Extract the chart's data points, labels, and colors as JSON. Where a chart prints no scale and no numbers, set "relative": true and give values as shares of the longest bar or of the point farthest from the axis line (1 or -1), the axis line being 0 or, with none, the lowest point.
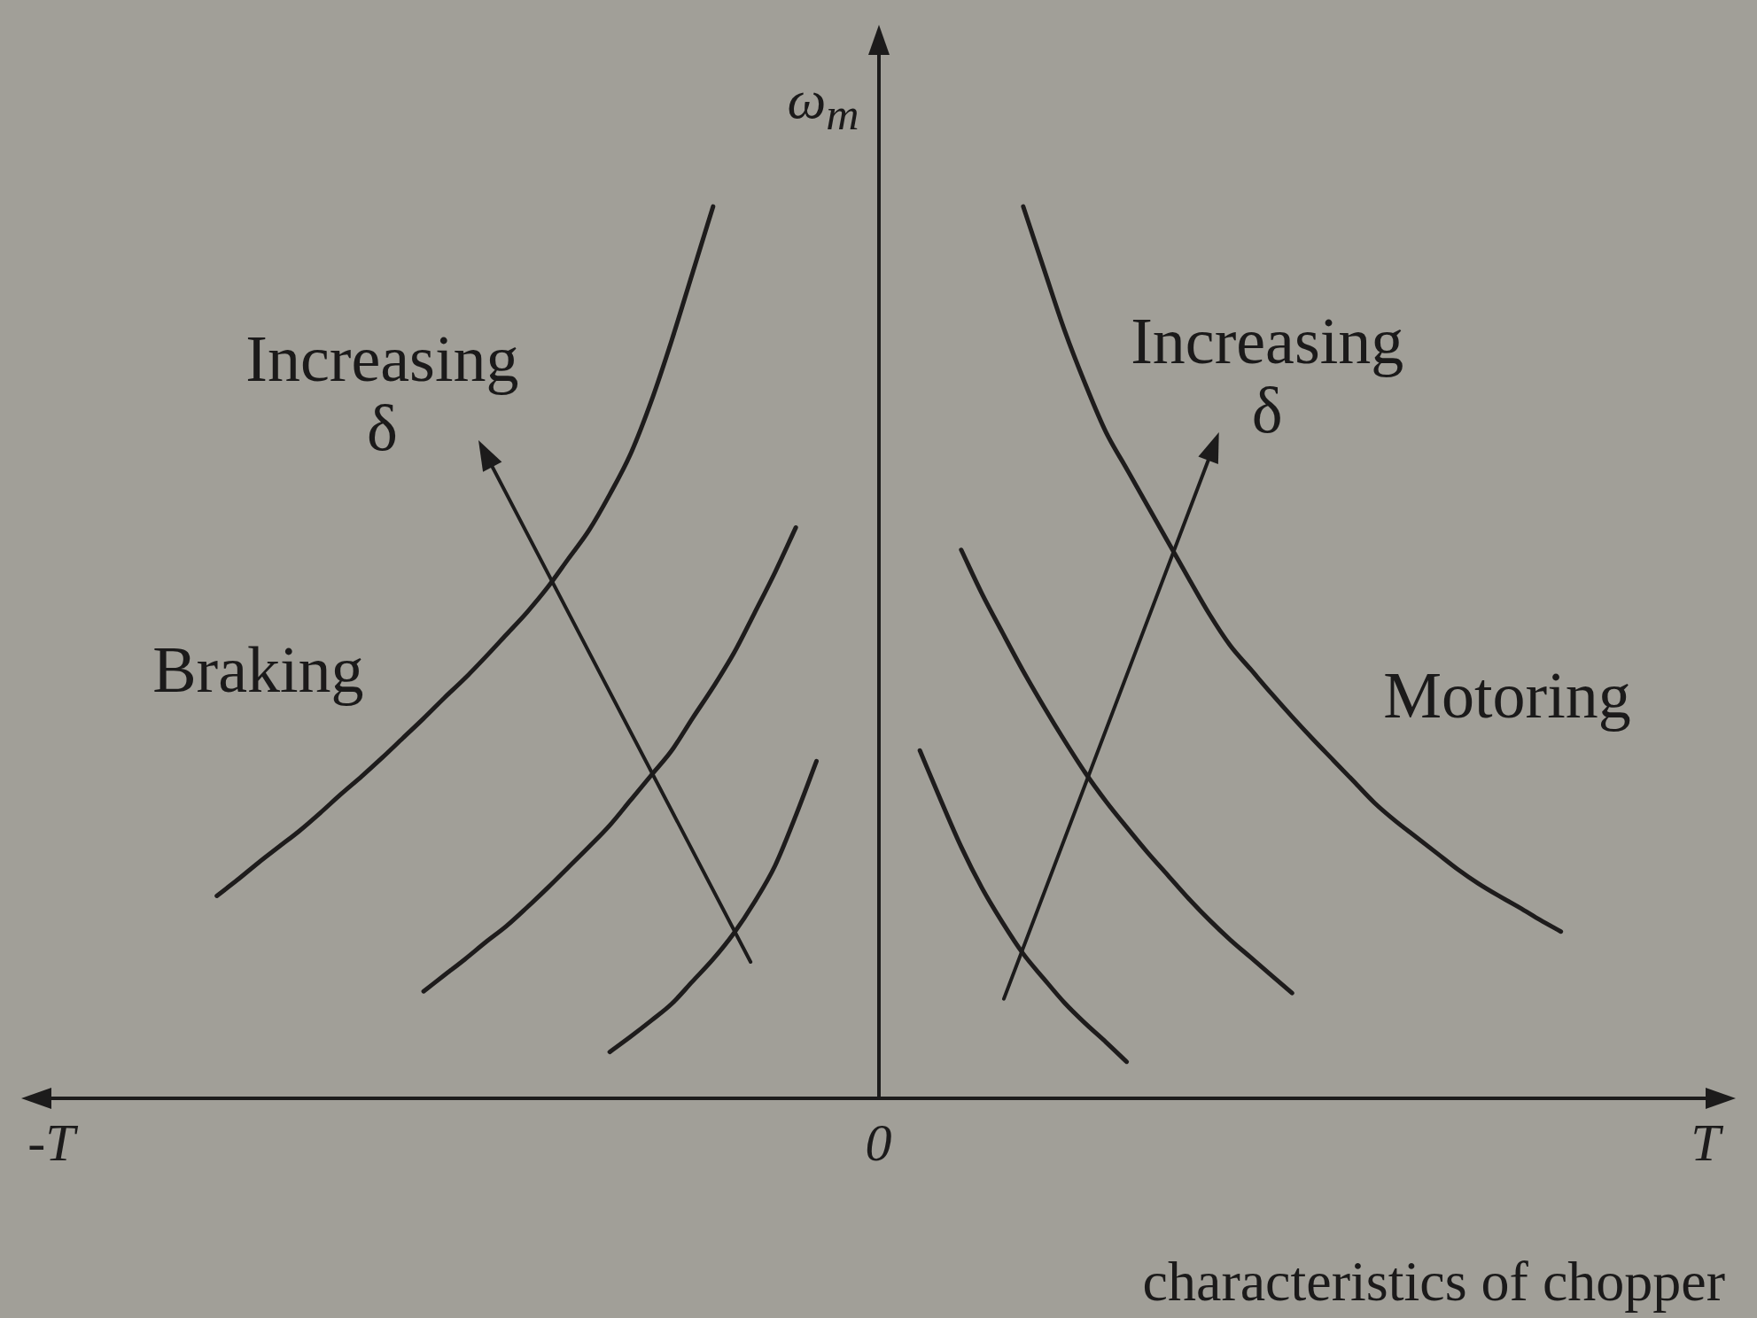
{
  "chart_data": {
    "type": "line",
    "ylabel": "ω$_{m}$",
    "relative": true,
    "categories": [
      "-T",
      null,
      null,
      null,
      null,
      null,
      null,
      null,
      null,
      null,
      null,
      null,
      null,
      null,
      null,
      null,
      null,
      null,
      null,
      null,
      null,
      null,
      null,
      null,
      null,
      null,
      null,
      null,
      null,
      null,
      null,
      null,
      null,
      null,
      null,
      null,
      null,
      null,
      null,
      null,
      "0",
      null,
      null,
      null,
      null,
      null,
      null,
      null,
      null,
      null,
      null,
      null,
      null,
      null,
      null,
      null,
      null,
      null,
      null,
      null,
      null,
      null,
      null,
      null,
      null,
      null,
      null,
      null,
      null,
      null,
      null,
      null,
      null,
      null,
      null,
      null,
      null,
      null,
      null,
      null,
      "T"
    ],
    "series": [
      {
        "color": "#1e1c1c",
        "values": [
          null,
          null,
          null,
          null,
          null,
          null,
          null,
          null,
          0.227,
          0.245,
          0.264,
          0.282,
          0.3,
          0.32,
          0.341,
          0.361,
          0.382,
          0.404,
          0.426,
          0.449,
          0.471,
          0.495,
          0.52,
          0.545,
          0.573,
          0.605,
          0.637,
          0.677,
          0.722,
          0.781,
          0.85,
          0.925,
          1.0,
          null,
          null,
          null,
          null,
          null,
          null,
          null,
          null,
          null,
          null,
          null,
          null,
          null,
          null,
          null,
          null,
          null,
          null,
          null,
          null,
          null,
          null,
          null,
          null,
          null,
          null,
          null,
          null,
          null,
          null,
          null,
          null,
          null,
          null,
          null,
          null,
          null,
          null,
          null,
          null,
          null,
          null,
          null,
          null,
          null,
          null,
          null,
          null
        ]
      },
      {
        "color": "#1e1c1c",
        "values": [
          null,
          null,
          null,
          null,
          null,
          null,
          null,
          null,
          null,
          null,
          null,
          null,
          null,
          null,
          null,
          null,
          null,
          null,
          0.12,
          0.138,
          0.156,
          0.175,
          0.193,
          0.214,
          0.236,
          0.259,
          0.282,
          0.306,
          0.334,
          0.362,
          0.39,
          0.426,
          0.461,
          0.499,
          0.544,
          0.59,
          0.64,
          null,
          null,
          null,
          null,
          null,
          null,
          null,
          null,
          null,
          null,
          null,
          null,
          null,
          null,
          null,
          null,
          null,
          null,
          null,
          null,
          null,
          null,
          null,
          null,
          null,
          null,
          null,
          null,
          null,
          null,
          null,
          null,
          null,
          null,
          null,
          null,
          null,
          null,
          null,
          null,
          null,
          null,
          null,
          null
        ]
      },
      {
        "color": "#1e1c1c",
        "values": [
          null,
          null,
          null,
          null,
          null,
          null,
          null,
          null,
          null,
          null,
          null,
          null,
          null,
          null,
          null,
          null,
          null,
          null,
          null,
          null,
          null,
          null,
          null,
          null,
          null,
          null,
          null,
          0.052,
          0.069,
          0.087,
          0.106,
          0.131,
          0.156,
          0.185,
          0.22,
          0.261,
          0.317,
          0.378,
          null,
          null,
          null,
          null,
          null,
          null,
          null,
          null,
          null,
          null,
          null,
          null,
          null,
          null,
          null,
          null,
          null,
          null,
          null,
          null,
          null,
          null,
          null,
          null,
          null,
          null,
          null,
          null,
          null,
          null,
          null,
          null,
          null,
          null,
          null,
          null,
          null,
          null,
          null,
          null,
          null,
          null,
          null
        ]
      },
      {
        "color": "#1e1c1c",
        "values": [
          null,
          null,
          null,
          null,
          null,
          null,
          null,
          null,
          null,
          null,
          null,
          null,
          null,
          null,
          null,
          null,
          null,
          null,
          null,
          null,
          null,
          null,
          null,
          null,
          null,
          null,
          null,
          null,
          null,
          null,
          null,
          null,
          null,
          null,
          null,
          null,
          null,
          null,
          null,
          null,
          null,
          null,
          null,
          null,
          null,
          null,
          null,
          1.0,
          0.93,
          0.861,
          0.801,
          0.747,
          0.706,
          0.665,
          0.624,
          0.583,
          0.543,
          0.508,
          0.481,
          0.454,
          0.428,
          0.403,
          0.379,
          0.355,
          0.331,
          0.311,
          0.293,
          0.275,
          0.257,
          0.241,
          0.227,
          0.214,
          0.2,
          0.187,
          null,
          null,
          null,
          null,
          null,
          null,
          null
        ]
      },
      {
        "color": "#1e1c1c",
        "values": [
          null,
          null,
          null,
          null,
          null,
          null,
          null,
          null,
          null,
          null,
          null,
          null,
          null,
          null,
          null,
          null,
          null,
          null,
          null,
          null,
          null,
          null,
          null,
          null,
          null,
          null,
          null,
          null,
          null,
          null,
          null,
          null,
          null,
          null,
          null,
          null,
          null,
          null,
          null,
          null,
          null,
          null,
          null,
          null,
          0.615,
          0.566,
          0.522,
          0.479,
          0.439,
          0.401,
          0.365,
          0.333,
          0.304,
          0.276,
          0.25,
          0.224,
          0.2,
          0.178,
          0.158,
          0.138,
          0.118,
          null,
          null,
          null,
          null,
          null,
          null,
          null,
          null,
          null,
          null,
          null,
          null,
          null,
          null,
          null,
          null,
          null,
          null,
          null,
          null
        ]
      },
      {
        "color": "#1e1c1c",
        "values": [
          null,
          null,
          null,
          null,
          null,
          null,
          null,
          null,
          null,
          null,
          null,
          null,
          null,
          null,
          null,
          null,
          null,
          null,
          null,
          null,
          null,
          null,
          null,
          null,
          null,
          null,
          null,
          null,
          null,
          null,
          null,
          null,
          null,
          null,
          null,
          null,
          null,
          null,
          null,
          null,
          null,
          null,
          0.39,
          0.335,
          0.282,
          0.236,
          0.197,
          0.162,
          0.134,
          0.107,
          0.084,
          0.063,
          0.041,
          null,
          null,
          null,
          null,
          null,
          null,
          null,
          null,
          null,
          null,
          null,
          null,
          null,
          null,
          null,
          null,
          null,
          null,
          null,
          null,
          null,
          null,
          null,
          null,
          null,
          null,
          null,
          null
        ]
      }
    ],
    "annotations": [
      "Increasing δ",
      "Increasing δ",
      "Braking",
      "Motoring",
      "characteristics of chopper"
    ]
  }
}
